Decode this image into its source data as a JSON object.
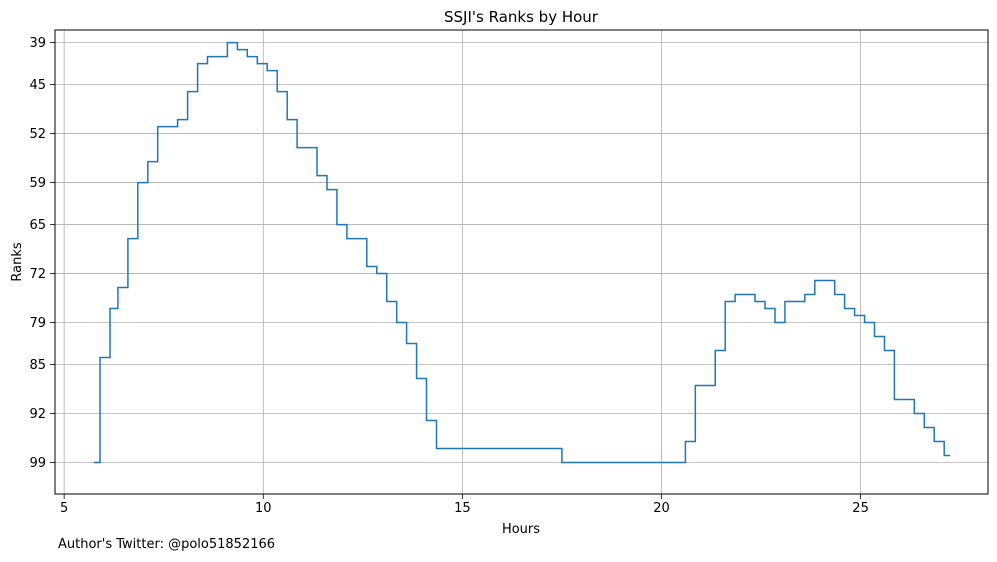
{
  "chart_data": {
    "type": "line",
    "title": "SSJI's Ranks by Hour",
    "xlabel": "Hours",
    "ylabel": "Ranks",
    "x_ticks": [
      5,
      10,
      15,
      20,
      25
    ],
    "y_ticks": [
      39,
      45,
      52,
      59,
      65,
      72,
      79,
      85,
      92,
      99
    ],
    "xlim": [
      4.77,
      28.2
    ],
    "ylim": [
      103.5,
      37.2
    ],
    "y_inverted": true,
    "grid": true,
    "step": "post",
    "color": "#1f77b4",
    "points": [
      [
        5.75,
        99
      ],
      [
        5.9,
        84
      ],
      [
        6.15,
        77
      ],
      [
        6.35,
        74
      ],
      [
        6.6,
        67
      ],
      [
        6.85,
        59
      ],
      [
        7.1,
        56
      ],
      [
        7.35,
        51
      ],
      [
        7.85,
        50
      ],
      [
        8.1,
        46
      ],
      [
        8.35,
        42
      ],
      [
        8.6,
        41
      ],
      [
        9.1,
        39
      ],
      [
        9.35,
        40
      ],
      [
        9.6,
        41
      ],
      [
        9.85,
        42
      ],
      [
        10.1,
        43
      ],
      [
        10.35,
        46
      ],
      [
        10.6,
        50
      ],
      [
        10.85,
        54
      ],
      [
        11.35,
        58
      ],
      [
        11.6,
        60
      ],
      [
        11.85,
        65
      ],
      [
        12.1,
        67
      ],
      [
        12.6,
        71
      ],
      [
        12.85,
        72
      ],
      [
        13.1,
        76
      ],
      [
        13.35,
        79
      ],
      [
        13.6,
        82
      ],
      [
        13.85,
        87
      ],
      [
        14.1,
        93
      ],
      [
        14.35,
        97
      ],
      [
        17.5,
        99
      ],
      [
        20.6,
        96
      ],
      [
        20.85,
        88
      ],
      [
        21.35,
        83
      ],
      [
        21.6,
        76
      ],
      [
        21.85,
        75
      ],
      [
        22.35,
        76
      ],
      [
        22.6,
        77
      ],
      [
        22.85,
        79
      ],
      [
        23.1,
        76
      ],
      [
        23.6,
        75
      ],
      [
        23.85,
        73
      ],
      [
        24.35,
        75
      ],
      [
        24.6,
        77
      ],
      [
        24.85,
        78
      ],
      [
        25.1,
        79
      ],
      [
        25.35,
        81
      ],
      [
        25.6,
        83
      ],
      [
        25.85,
        90
      ],
      [
        26.35,
        92
      ],
      [
        26.6,
        94
      ],
      [
        26.85,
        96
      ],
      [
        27.1,
        98
      ],
      [
        27.25,
        98
      ]
    ]
  },
  "footer": {
    "text": "Author's Twitter: @polo51852166"
  }
}
